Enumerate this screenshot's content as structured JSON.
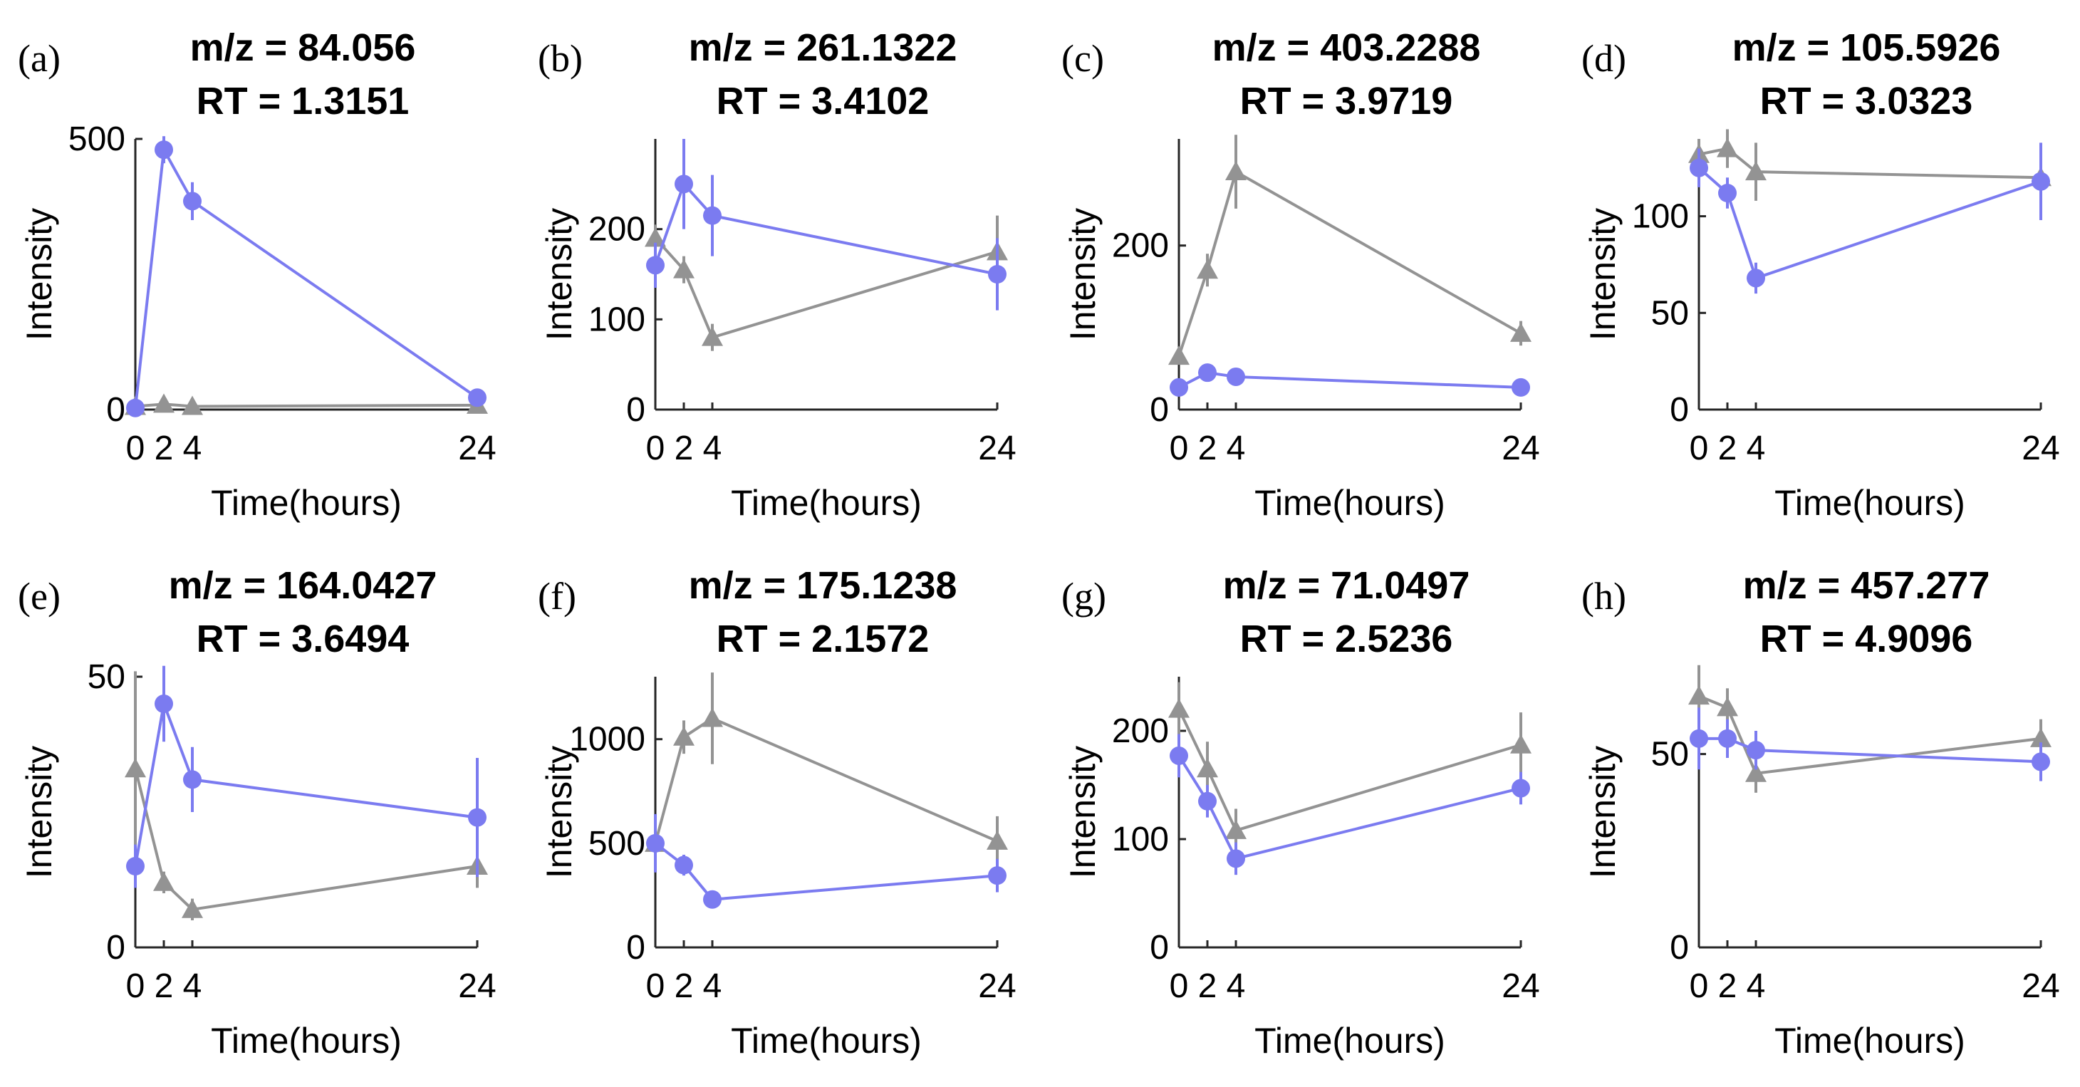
{
  "chart_data": [
    {
      "panel": "(a)",
      "type": "line",
      "title": [
        "m/z = 84.056",
        "RT = 1.3151"
      ],
      "xlabel": "Time(hours)",
      "ylabel": "Intensity",
      "xlim": [
        0,
        24
      ],
      "ylim": [
        0,
        500
      ],
      "xticks": [
        0,
        2,
        4,
        24
      ],
      "xtick_labels": [
        "0",
        "2",
        "4",
        "24"
      ],
      "yticks": [
        0,
        500
      ],
      "ytick_labels": [
        "0",
        "500"
      ],
      "series": [
        {
          "name": "blue",
          "color": "#7b7bf0",
          "marker": "circle",
          "x": [
            0,
            2,
            4,
            24
          ],
          "y": [
            3,
            480,
            385,
            22
          ],
          "err": [
            4,
            25,
            35,
            6
          ]
        },
        {
          "name": "gray",
          "color": "#939393",
          "marker": "triangle",
          "x": [
            0,
            2,
            4,
            24
          ],
          "y": [
            6,
            10,
            6,
            8
          ],
          "err": [
            4,
            5,
            4,
            4
          ]
        }
      ]
    },
    {
      "panel": "(b)",
      "type": "line",
      "title": [
        "m/z = 261.1322",
        "RT = 3.4102"
      ],
      "xlabel": "Time(hours)",
      "ylabel": "Intensity",
      "xlim": [
        0,
        24
      ],
      "ylim": [
        0,
        300
      ],
      "xticks": [
        0,
        2,
        4,
        24
      ],
      "xtick_labels": [
        "0",
        "2",
        "4",
        "24"
      ],
      "yticks": [
        0,
        100,
        200
      ],
      "ytick_labels": [
        "0",
        "100",
        "200"
      ],
      "series": [
        {
          "name": "blue",
          "color": "#7b7bf0",
          "marker": "circle",
          "x": [
            0,
            2,
            4,
            24
          ],
          "y": [
            160,
            250,
            215,
            150
          ],
          "err": [
            25,
            50,
            45,
            40
          ]
        },
        {
          "name": "gray",
          "color": "#939393",
          "marker": "triangle",
          "x": [
            0,
            2,
            4,
            24
          ],
          "y": [
            190,
            155,
            80,
            175
          ],
          "err": [
            15,
            15,
            15,
            40
          ]
        }
      ]
    },
    {
      "panel": "(c)",
      "type": "line",
      "title": [
        "m/z = 403.2288",
        "RT = 3.9719"
      ],
      "xlabel": "Time(hours)",
      "ylabel": "Intensity",
      "xlim": [
        0,
        24
      ],
      "ylim": [
        0,
        330
      ],
      "xticks": [
        0,
        2,
        4,
        24
      ],
      "xtick_labels": [
        "0",
        "2",
        "4",
        "24"
      ],
      "yticks": [
        0,
        200
      ],
      "ytick_labels": [
        "0",
        "200"
      ],
      "series": [
        {
          "name": "blue",
          "color": "#7b7bf0",
          "marker": "circle",
          "x": [
            0,
            2,
            4,
            24
          ],
          "y": [
            27,
            45,
            40,
            27
          ],
          "err": [
            5,
            6,
            5,
            5
          ]
        },
        {
          "name": "gray",
          "color": "#939393",
          "marker": "triangle",
          "x": [
            0,
            2,
            4,
            24
          ],
          "y": [
            65,
            170,
            290,
            93
          ],
          "err": [
            10,
            20,
            45,
            15
          ]
        }
      ]
    },
    {
      "panel": "(d)",
      "type": "line",
      "title": [
        "m/z = 105.5926",
        "RT = 3.0323"
      ],
      "xlabel": "Time(hours)",
      "ylabel": "Intensity",
      "xlim": [
        0,
        24
      ],
      "ylim": [
        0,
        140
      ],
      "xticks": [
        0,
        2,
        4,
        24
      ],
      "xtick_labels": [
        "0",
        "2",
        "4",
        "24"
      ],
      "yticks": [
        0,
        50,
        100
      ],
      "ytick_labels": [
        "0",
        "50",
        "100"
      ],
      "series": [
        {
          "name": "blue",
          "color": "#7b7bf0",
          "marker": "circle",
          "x": [
            0,
            2,
            4,
            24
          ],
          "y": [
            125,
            112,
            68,
            118
          ],
          "err": [
            10,
            8,
            8,
            20
          ]
        },
        {
          "name": "gray",
          "color": "#939393",
          "marker": "triangle",
          "x": [
            0,
            2,
            4,
            24
          ],
          "y": [
            132,
            135,
            123,
            120
          ],
          "err": [
            8,
            10,
            15,
            15
          ]
        }
      ]
    },
    {
      "panel": "(e)",
      "type": "line",
      "title": [
        "m/z = 164.0427",
        "RT = 3.6494"
      ],
      "xlabel": "Time(hours)",
      "ylabel": "Intensity",
      "xlim": [
        0,
        24
      ],
      "ylim": [
        0,
        50
      ],
      "xticks": [
        0,
        2,
        4,
        24
      ],
      "xtick_labels": [
        "0",
        "2",
        "4",
        "24"
      ],
      "yticks": [
        0,
        50
      ],
      "ytick_labels": [
        "0",
        "50"
      ],
      "series": [
        {
          "name": "blue",
          "color": "#7b7bf0",
          "marker": "circle",
          "x": [
            0,
            2,
            4,
            24
          ],
          "y": [
            15,
            45,
            31,
            24
          ],
          "err": [
            4,
            7,
            6,
            11
          ]
        },
        {
          "name": "gray",
          "color": "#939393",
          "marker": "triangle",
          "x": [
            0,
            2,
            4,
            24
          ],
          "y": [
            33,
            12,
            7,
            15
          ],
          "err": [
            18,
            2,
            2,
            4
          ]
        }
      ]
    },
    {
      "panel": "(f)",
      "type": "line",
      "title": [
        "m/z = 175.1238",
        "RT = 2.1572"
      ],
      "xlabel": "Time(hours)",
      "ylabel": "Intensity",
      "xlim": [
        0,
        24
      ],
      "ylim": [
        0,
        1300
      ],
      "xticks": [
        0,
        2,
        4,
        24
      ],
      "xtick_labels": [
        "0",
        "2",
        "4",
        "24"
      ],
      "yticks": [
        0,
        500,
        1000
      ],
      "ytick_labels": [
        "0",
        "500",
        "1000"
      ],
      "series": [
        {
          "name": "blue",
          "color": "#7b7bf0",
          "marker": "circle",
          "x": [
            0,
            2,
            4,
            24
          ],
          "y": [
            500,
            395,
            230,
            345
          ],
          "err": [
            140,
            50,
            40,
            80
          ]
        },
        {
          "name": "gray",
          "color": "#939393",
          "marker": "triangle",
          "x": [
            0,
            2,
            4,
            24
          ],
          "y": [
            500,
            1010,
            1100,
            510
          ],
          "err": [
            60,
            80,
            220,
            120
          ]
        }
      ]
    },
    {
      "panel": "(g)",
      "type": "line",
      "title": [
        "m/z = 71.0497",
        "RT = 2.5236"
      ],
      "xlabel": "Time(hours)",
      "ylabel": "Intensity",
      "xlim": [
        0,
        24
      ],
      "ylim": [
        0,
        250
      ],
      "xticks": [
        0,
        2,
        4,
        24
      ],
      "xtick_labels": [
        "0",
        "2",
        "4",
        "24"
      ],
      "yticks": [
        0,
        100,
        200
      ],
      "ytick_labels": [
        "0",
        "100",
        "200"
      ],
      "series": [
        {
          "name": "blue",
          "color": "#7b7bf0",
          "marker": "circle",
          "x": [
            0,
            2,
            4,
            24
          ],
          "y": [
            177,
            135,
            82,
            147
          ],
          "err": [
            20,
            15,
            15,
            15
          ]
        },
        {
          "name": "gray",
          "color": "#939393",
          "marker": "triangle",
          "x": [
            0,
            2,
            4,
            24
          ],
          "y": [
            220,
            165,
            108,
            187
          ],
          "err": [
            25,
            25,
            20,
            30
          ]
        }
      ]
    },
    {
      "panel": "(h)",
      "type": "line",
      "title": [
        "m/z = 457.277",
        "RT = 4.9096"
      ],
      "xlabel": "Time(hours)",
      "ylabel": "Intensity",
      "xlim": [
        0,
        24
      ],
      "ylim": [
        0,
        70
      ],
      "xticks": [
        0,
        2,
        4,
        24
      ],
      "xtick_labels": [
        "0",
        "2",
        "4",
        "24"
      ],
      "yticks": [
        0,
        50
      ],
      "ytick_labels": [
        "0",
        "50"
      ],
      "series": [
        {
          "name": "blue",
          "color": "#7b7bf0",
          "marker": "circle",
          "x": [
            0,
            2,
            4,
            24
          ],
          "y": [
            54,
            54,
            51,
            48
          ],
          "err": [
            8,
            5,
            5,
            5
          ]
        },
        {
          "name": "gray",
          "color": "#939393",
          "marker": "triangle",
          "x": [
            0,
            2,
            4,
            24
          ],
          "y": [
            65,
            62,
            45,
            54
          ],
          "err": [
            8,
            5,
            5,
            5
          ]
        }
      ]
    }
  ]
}
